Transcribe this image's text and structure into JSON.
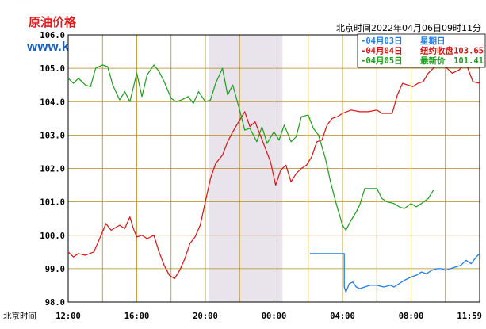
{
  "header": {
    "title": "原油价格",
    "site": "www.kitco.cn",
    "timestamp": "北京时间2022年04月06日09时11分"
  },
  "chart_data": {
    "type": "line",
    "title": "原油价格",
    "xlabel": "北京时间",
    "ylabel": "",
    "ylim": [
      98.0,
      106.0
    ],
    "y_ticks": [
      "98.0",
      "99.0",
      "100.0",
      "101.0",
      "102.0",
      "103.0",
      "104.0",
      "105.0",
      "106.0"
    ],
    "x_ticks": [
      "12:00",
      "16:00",
      "20:00",
      "00:00",
      "04:00",
      "08:00",
      "11:59"
    ],
    "x_hours": [
      12,
      16,
      20,
      24,
      28,
      32,
      36
    ],
    "highlight_band": [
      20.2,
      24.5
    ],
    "grid": true,
    "legend": {
      "placement": "top-right",
      "entries": [
        {
          "date": "04月03日",
          "label": "星期日",
          "value": "",
          "color": "#1e7ee8"
        },
        {
          "date": "04月04日",
          "label": "纽约收盘",
          "value": "103.65",
          "color": "#e01010"
        },
        {
          "date": "04月05日",
          "label": "最新价",
          "value": "101.41",
          "color": "#1aa01a"
        }
      ]
    },
    "series": [
      {
        "name": "04月03日",
        "color": "#1e7ee8",
        "x": [
          26.1,
          28.1,
          28.1,
          28.2,
          28.4,
          28.6,
          28.8,
          29.0,
          29.3,
          29.6,
          30.0,
          30.4,
          30.8,
          31.0,
          31.3,
          31.6,
          31.8,
          32.0,
          32.3,
          32.6,
          32.9,
          33.2,
          33.5,
          33.8,
          34.0,
          34.3,
          34.6,
          34.9,
          35.2,
          35.5,
          35.8,
          36.0
        ],
        "values": [
          99.45,
          99.45,
          98.45,
          98.3,
          98.55,
          98.6,
          98.45,
          98.4,
          98.45,
          98.5,
          98.5,
          98.45,
          98.5,
          98.45,
          98.55,
          98.65,
          98.7,
          98.75,
          98.8,
          98.9,
          98.85,
          98.95,
          99.0,
          99.0,
          98.95,
          99.0,
          99.05,
          99.1,
          99.25,
          99.15,
          99.35,
          99.45
        ]
      },
      {
        "name": "04月04日",
        "color": "#e01010",
        "x": [
          12.0,
          12.3,
          12.6,
          13.0,
          13.5,
          14.0,
          14.2,
          14.5,
          15.0,
          15.3,
          15.6,
          15.8,
          16.0,
          16.3,
          16.6,
          17.0,
          17.3,
          17.6,
          17.9,
          18.2,
          18.5,
          18.8,
          19.1,
          19.4,
          19.7,
          20.0,
          20.3,
          20.6,
          21.0,
          21.3,
          21.6,
          22.0,
          22.3,
          22.6,
          22.9,
          23.2,
          23.5,
          23.8,
          24.1,
          24.4,
          24.7,
          25.0,
          25.3,
          25.6,
          25.9,
          26.2,
          26.5,
          26.8,
          27.1,
          27.4,
          27.7,
          28.0,
          28.5,
          29.0,
          29.5,
          30.0,
          30.3,
          30.6,
          30.9,
          31.2,
          31.5,
          31.8,
          32.1,
          32.4,
          32.7,
          33.0,
          33.3,
          33.6,
          34.0,
          34.4,
          34.8,
          35.2,
          35.6,
          36.0
        ],
        "values": [
          99.5,
          99.35,
          99.45,
          99.4,
          99.5,
          100.1,
          100.35,
          100.15,
          100.3,
          100.2,
          100.55,
          100.2,
          99.95,
          100.0,
          99.9,
          100.0,
          99.5,
          99.1,
          98.8,
          98.7,
          98.95,
          99.3,
          99.75,
          99.95,
          100.3,
          101.0,
          101.7,
          102.15,
          102.4,
          102.8,
          103.1,
          103.45,
          103.7,
          103.25,
          103.4,
          103.0,
          102.6,
          102.2,
          101.5,
          101.95,
          102.1,
          101.6,
          101.85,
          102.0,
          102.1,
          102.35,
          102.8,
          102.85,
          103.3,
          103.5,
          103.55,
          103.65,
          103.75,
          103.7,
          103.7,
          103.75,
          103.65,
          103.65,
          103.65,
          104.2,
          104.55,
          104.5,
          104.45,
          104.55,
          104.6,
          104.85,
          105.0,
          105.1,
          105.05,
          104.85,
          104.95,
          105.15,
          104.6,
          104.55
        ]
      },
      {
        "name": "04月05日",
        "color": "#1aa01a",
        "x": [
          12.0,
          12.3,
          12.6,
          13.0,
          13.3,
          13.6,
          14.0,
          14.3,
          14.6,
          15.0,
          15.3,
          15.6,
          16.0,
          16.3,
          16.6,
          17.0,
          17.3,
          17.6,
          18.0,
          18.3,
          18.6,
          19.0,
          19.3,
          19.6,
          20.0,
          20.3,
          20.6,
          21.0,
          21.3,
          21.6,
          22.0,
          22.3,
          22.6,
          23.0,
          23.3,
          23.6,
          24.0,
          24.3,
          24.6,
          25.0,
          25.3,
          25.6,
          26.0,
          26.3,
          26.6,
          27.0,
          27.3,
          27.6,
          28.0,
          28.2,
          28.5,
          28.8,
          29.0,
          29.3,
          29.6,
          30.0,
          30.3,
          30.6,
          31.0,
          31.3,
          31.6,
          32.0,
          32.3,
          32.6,
          33.0,
          33.3
        ],
        "values": [
          104.7,
          104.55,
          104.7,
          104.5,
          104.45,
          105.0,
          105.1,
          105.05,
          104.5,
          104.05,
          104.3,
          104.0,
          104.85,
          104.15,
          104.8,
          105.1,
          104.9,
          104.6,
          104.1,
          104.0,
          104.05,
          104.15,
          103.95,
          104.3,
          104.0,
          104.05,
          104.55,
          105.0,
          104.2,
          104.5,
          103.75,
          103.15,
          103.2,
          102.8,
          103.25,
          102.75,
          103.1,
          102.85,
          103.3,
          102.8,
          102.95,
          103.55,
          103.6,
          103.2,
          103.0,
          102.3,
          101.6,
          101.0,
          100.3,
          100.15,
          100.45,
          100.7,
          100.9,
          101.4,
          101.4,
          101.4,
          101.1,
          101.0,
          100.95,
          100.85,
          100.8,
          100.95,
          100.85,
          100.95,
          101.1,
          101.35
        ]
      }
    ]
  }
}
